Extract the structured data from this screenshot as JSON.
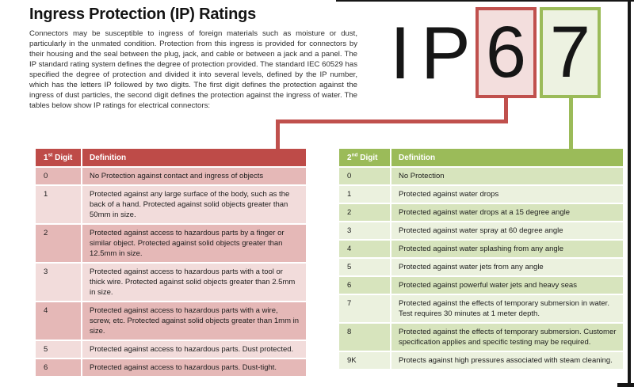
{
  "page": {
    "title": "Ingress Protection (IP) Ratings",
    "intro": "Connectors may be susceptible to ingress of foreign materials such as moisture or dust, particularly in the unmated condition.  Protection from this ingress is provided for connectors by their housing and the seal between the plug, jack, and cable or between a jack and a panel. The IP standard rating system defines the degree of protection provided. The standard IEC 60529 has specified the degree of protection and divided it into several levels, defined by the IP number, which has the letters IP followed by two digits.  The first digit defines the protection against the ingress of dust particles, the second digit defines the protection against the ingress of water. The tables below show IP ratings for electrical connectors:"
  },
  "ip_graphic": {
    "letter_i": "I",
    "letter_p": "P",
    "first_digit": "6",
    "second_digit": "7"
  },
  "colors": {
    "red_accent": "#BE4B48",
    "red_box_border": "#C0504D",
    "pink_row_dark": "#E5B8B7",
    "pink_row_light": "#F2DCDB",
    "green_accent": "#9BBB59",
    "green_row_dark": "#D7E4BD",
    "green_row_light": "#EBF1DE"
  },
  "first_table": {
    "header": {
      "digit_num": "1",
      "digit_sup": "st",
      "digit_rest": " Digit",
      "definition": "Definition"
    },
    "rows": [
      {
        "digit": "0",
        "definition": "No Protection against contact and ingress of objects"
      },
      {
        "digit": "1",
        "definition": "Protected against any large surface of the body, such as the back of a hand.  Protected against solid objects greater than 50mm in size."
      },
      {
        "digit": "2",
        "definition": "Protected against access to hazardous parts by a finger or similar object.  Protected against solid objects greater than 12.5mm in size."
      },
      {
        "digit": "3",
        "definition": "Protected against access to hazardous parts with a tool or thick wire.  Protected against solid objects greater than 2.5mm in size."
      },
      {
        "digit": "4",
        "definition": "Protected against access to hazardous parts with a wire, screw, etc.  Protected against solid objects greater than 1mm in size."
      },
      {
        "digit": "5",
        "definition": "Protected against access to hazardous parts.  Dust protected."
      },
      {
        "digit": "6",
        "definition": "Protected against access to hazardous parts.  Dust-tight."
      }
    ]
  },
  "second_table": {
    "header": {
      "digit_num": "2",
      "digit_sup": "nd",
      "digit_rest": " Digit",
      "definition": "Definition"
    },
    "rows": [
      {
        "digit": "0",
        "definition": "No Protection"
      },
      {
        "digit": "1",
        "definition": "Protected against water drops"
      },
      {
        "digit": "2",
        "definition": "Protected against water drops at a 15 degree angle"
      },
      {
        "digit": "3",
        "definition": "Protected against water spray at 60 degree angle"
      },
      {
        "digit": "4",
        "definition": "Protected against water splashing from any angle"
      },
      {
        "digit": "5",
        "definition": "Protected against water jets from any angle"
      },
      {
        "digit": "6",
        "definition": "Protected against powerful water jets and heavy seas"
      },
      {
        "digit": "7",
        "definition": "Protected against the effects of temporary submersion in water.  Test requires 30 minutes at 1 meter depth."
      },
      {
        "digit": "8",
        "definition": "Protected against the effects of temporary submersion. Customer specification applies and specific testing may be required."
      },
      {
        "digit": "9K",
        "definition": "Protects against high pressures associated with steam cleaning."
      }
    ]
  }
}
